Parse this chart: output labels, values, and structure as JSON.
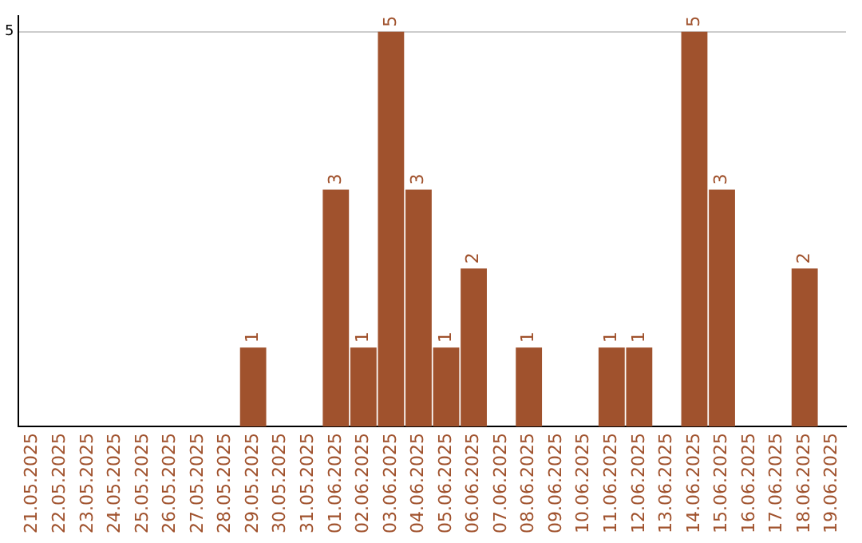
{
  "chart_data": {
    "type": "bar",
    "categories": [
      "21.05.2025",
      "22.05.2025",
      "23.05.2025",
      "24.05.2025",
      "25.05.2025",
      "26.05.2025",
      "27.05.2025",
      "28.05.2025",
      "29.05.2025",
      "30.05.2025",
      "31.05.2025",
      "01.06.2025",
      "02.06.2025",
      "03.06.2025",
      "04.06.2025",
      "05.06.2025",
      "06.06.2025",
      "07.06.2025",
      "08.06.2025",
      "09.06.2025",
      "10.06.2025",
      "11.06.2025",
      "12.06.2025",
      "13.06.2025",
      "14.06.2025",
      "15.06.2025",
      "16.06.2025",
      "17.06.2025",
      "18.06.2025",
      "19.06.2025"
    ],
    "values": [
      0,
      0,
      0,
      0,
      0,
      0,
      0,
      0,
      1,
      0,
      0,
      3,
      1,
      5,
      3,
      1,
      2,
      0,
      1,
      0,
      0,
      1,
      1,
      0,
      5,
      3,
      0,
      0,
      2,
      0
    ],
    "color": "#a0522d",
    "value_labels": [
      null,
      null,
      null,
      null,
      null,
      null,
      null,
      null,
      "1",
      null,
      null,
      "3",
      "1",
      "5",
      "3",
      "1",
      "2",
      null,
      "1",
      null,
      null,
      "1",
      "1",
      null,
      "5",
      "3",
      null,
      null,
      "2",
      null
    ],
    "ylim": [
      0,
      5.2
    ],
    "yticks": [
      5
    ],
    "grid": "y",
    "legend": false
  }
}
